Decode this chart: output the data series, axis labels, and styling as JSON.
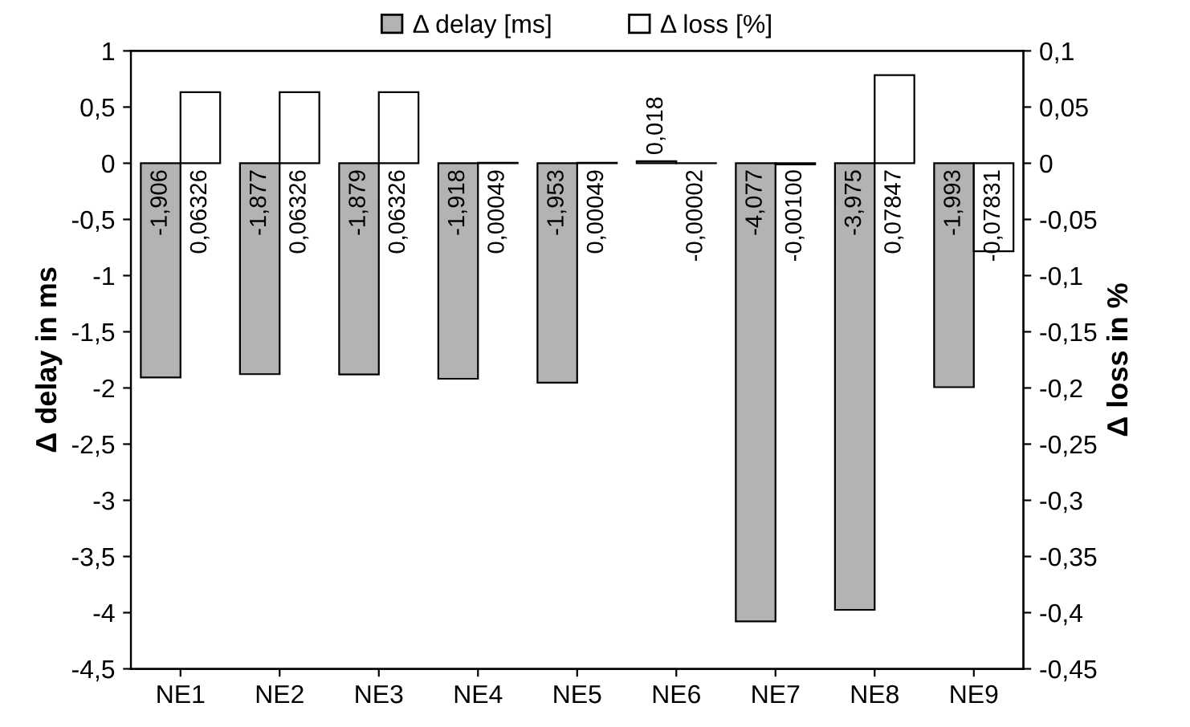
{
  "chart_data": {
    "type": "bar",
    "categories": [
      "NE1",
      "NE2",
      "NE3",
      "NE4",
      "NE5",
      "NE6",
      "NE7",
      "NE8",
      "NE9"
    ],
    "ylabel": "Δ delay in ms",
    "y2label": "Δ loss in %",
    "legend": "top",
    "grid": false,
    "series": [
      {
        "name": "Δ delay [ms]",
        "color": "#b3b3b3",
        "values": [
          -1.906,
          -1.877,
          -1.879,
          -1.918,
          -1.953,
          0.018,
          -4.077,
          -3.975,
          -1.993
        ],
        "value_labels": [
          "-1,906",
          "-1,877",
          "-1,879",
          "-1,918",
          "-1,953",
          "0,018",
          "-4,077",
          "-3,975",
          "-1,993"
        ]
      },
      {
        "name": "Δ loss [%]",
        "color": "#ffffff",
        "axis": "y2",
        "values": [
          0.06326,
          0.06326,
          0.06326,
          0.00049,
          0.00049,
          -2e-05,
          -0.001,
          0.07847,
          -0.07831
        ],
        "value_labels": [
          "0,06326",
          "0,06326",
          "0,06326",
          "0,00049",
          "0,00049",
          "-0,00002",
          "-0,00100",
          "0,07847",
          "-0,07831"
        ]
      }
    ],
    "ylim": [
      -4.5,
      1
    ],
    "yticks": [
      1,
      {
        "value": 0.5,
        "label": "0,5"
      },
      0,
      {
        "value": -0.5,
        "label": "-0,5"
      },
      -1,
      {
        "value": -1.5,
        "label": "-1,5"
      },
      -2,
      {
        "value": -2.5,
        "label": "-2,5"
      },
      -3,
      {
        "value": -3.5,
        "label": "-3,5"
      },
      -4,
      {
        "value": -4.5,
        "label": "-4,5"
      }
    ],
    "y2lim": [
      -0.45,
      0.1
    ],
    "y2ticks": [
      {
        "value": 0.1,
        "label": "0,1"
      },
      {
        "value": 0.05,
        "label": "0,05"
      },
      0,
      {
        "value": -0.05,
        "label": "-0,05"
      },
      {
        "value": -0.1,
        "label": "-0,1"
      },
      {
        "value": -0.15,
        "label": "-0,15"
      },
      {
        "value": -0.2,
        "label": "-0,2"
      },
      {
        "value": -0.25,
        "label": "-0,25"
      },
      {
        "value": -0.3,
        "label": "-0,3"
      },
      {
        "value": -0.35,
        "label": "-0,35"
      },
      {
        "value": -0.4,
        "label": "-0,4"
      },
      {
        "value": -0.45,
        "label": "-0,45"
      }
    ]
  }
}
